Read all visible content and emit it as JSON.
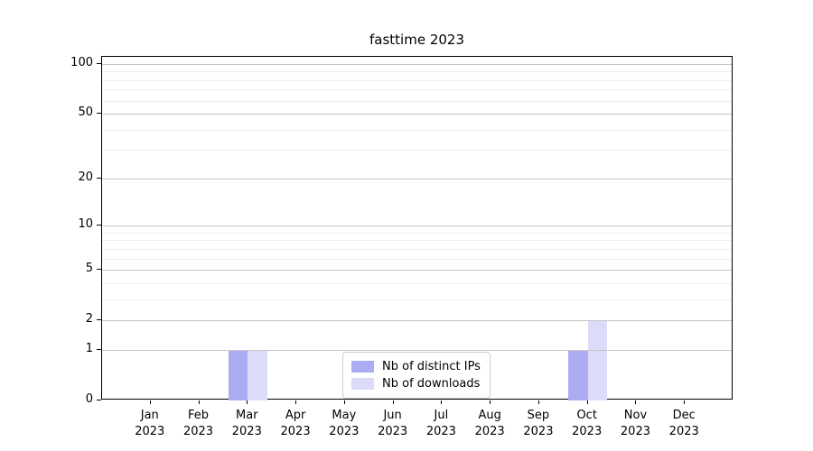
{
  "title": "fasttime 2023",
  "colors": {
    "distinct_ips_bar": "#abacf2",
    "downloads_bar": "#dcdcf8",
    "major_grid": "#c6c6c6",
    "minor_grid": "#ededed",
    "spine": "#000000",
    "legend_border": "#cccccc",
    "background": "#ffffff"
  },
  "legend": {
    "items": [
      {
        "label": "Nb of distinct IPs",
        "color": "#abacf2"
      },
      {
        "label": "Nb of downloads",
        "color": "#dcdcf8"
      }
    ]
  },
  "chart_data": {
    "type": "bar",
    "title": "fasttime 2023",
    "categories": [
      "Jan 2023",
      "Feb 2023",
      "Mar 2023",
      "Apr 2023",
      "May 2023",
      "Jun 2023",
      "Jul 2023",
      "Aug 2023",
      "Sep 2023",
      "Oct 2023",
      "Nov 2023",
      "Dec 2023"
    ],
    "series": [
      {
        "name": "Nb of distinct IPs",
        "color": "#abacf2",
        "values": [
          0,
          0,
          1,
          0,
          0,
          0,
          0,
          0,
          0,
          1,
          0,
          0
        ]
      },
      {
        "name": "Nb of downloads",
        "color": "#dcdcf8",
        "values": [
          0,
          0,
          1,
          0,
          0,
          0,
          0,
          0,
          0,
          2,
          0,
          0
        ]
      }
    ],
    "xlabel": "",
    "ylabel": "",
    "yscale": "log1p",
    "ylim": [
      0,
      110.5
    ],
    "y_major_ticks": [
      0,
      1,
      2,
      5,
      10,
      20,
      50,
      100
    ],
    "y_minor_ticks": [
      3,
      4,
      6,
      7,
      8,
      9,
      30,
      40,
      60,
      70,
      80,
      90
    ],
    "grid": true,
    "legend_position": "lower center",
    "bar_width_fraction": 0.4
  }
}
